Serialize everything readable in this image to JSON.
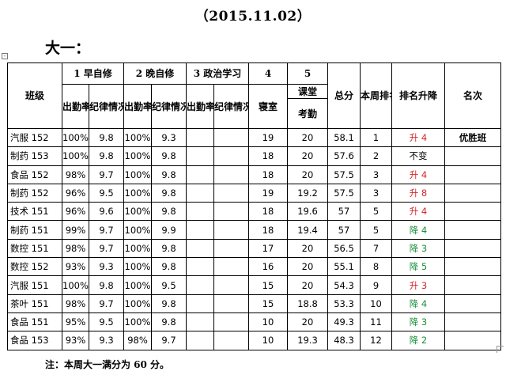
{
  "date": "（2015.11.02）",
  "grade": "大一：",
  "header": {
    "class": "班级",
    "morning": "1 早自修",
    "evening": "2 晚自修",
    "politics": "3 政治学习",
    "dorm_no": "4",
    "dorm": "寝室",
    "class_no": "5",
    "class_sub": "课堂",
    "attend_check": "考勤",
    "total": "总分",
    "week_rank": "本周排名",
    "rank_change": "排名升降",
    "place": "名次",
    "attend_rate": "出勤率",
    "discipline": "纪律情况"
  },
  "rows": [
    {
      "cls": "汽服 152",
      "m_rate": "100%",
      "m_disc": "9.8",
      "e_rate": "100%",
      "e_disc": "9.3",
      "p_rate": "",
      "p_disc": "",
      "dorm": "19",
      "attend": "20",
      "total": "58.1",
      "rank": "1",
      "change": "升 4",
      "dir": "up",
      "place": "优胜班"
    },
    {
      "cls": "制药 153",
      "m_rate": "100%",
      "m_disc": "9.8",
      "e_rate": "100%",
      "e_disc": "9.8",
      "p_rate": "",
      "p_disc": "",
      "dorm": "18",
      "attend": "20",
      "total": "57.6",
      "rank": "2",
      "change": "不变",
      "dir": "same",
      "place": ""
    },
    {
      "cls": "食品 152",
      "m_rate": "98%",
      "m_disc": "9.7",
      "e_rate": "100%",
      "e_disc": "9.8",
      "p_rate": "",
      "p_disc": "",
      "dorm": "18",
      "attend": "20",
      "total": "57.5",
      "rank": "3",
      "change": "升 4",
      "dir": "up",
      "place": ""
    },
    {
      "cls": "制药 152",
      "m_rate": "96%",
      "m_disc": "9.5",
      "e_rate": "100%",
      "e_disc": "9.8",
      "p_rate": "",
      "p_disc": "",
      "dorm": "19",
      "attend": "19.2",
      "total": "57.5",
      "rank": "3",
      "change": "升 8",
      "dir": "up",
      "place": ""
    },
    {
      "cls": "技术 151",
      "m_rate": "96%",
      "m_disc": "9.6",
      "e_rate": "100%",
      "e_disc": "9.8",
      "p_rate": "",
      "p_disc": "",
      "dorm": "18",
      "attend": "19.6",
      "total": "57",
      "rank": "5",
      "change": "升 4",
      "dir": "up",
      "place": ""
    },
    {
      "cls": "制药 151",
      "m_rate": "99%",
      "m_disc": "9.7",
      "e_rate": "100%",
      "e_disc": "9.9",
      "p_rate": "",
      "p_disc": "",
      "dorm": "18",
      "attend": "19.4",
      "total": "57",
      "rank": "5",
      "change": "降 4",
      "dir": "down",
      "place": ""
    },
    {
      "cls": "数控 151",
      "m_rate": "98%",
      "m_disc": "9.7",
      "e_rate": "100%",
      "e_disc": "9.8",
      "p_rate": "",
      "p_disc": "",
      "dorm": "17",
      "attend": "20",
      "total": "56.5",
      "rank": "7",
      "change": "降 3",
      "dir": "down",
      "place": ""
    },
    {
      "cls": "数控 152",
      "m_rate": "93%",
      "m_disc": "9.3",
      "e_rate": "100%",
      "e_disc": "9.8",
      "p_rate": "",
      "p_disc": "",
      "dorm": "16",
      "attend": "20",
      "total": "55.1",
      "rank": "8",
      "change": "降 5",
      "dir": "down",
      "place": ""
    },
    {
      "cls": "汽服 151",
      "m_rate": "100%",
      "m_disc": "9.8",
      "e_rate": "100%",
      "e_disc": "9.5",
      "p_rate": "",
      "p_disc": "",
      "dorm": "15",
      "attend": "20",
      "total": "54.3",
      "rank": "9",
      "change": "升 3",
      "dir": "up",
      "place": ""
    },
    {
      "cls": "茶叶 151",
      "m_rate": "98%",
      "m_disc": "9.7",
      "e_rate": "100%",
      "e_disc": "9.8",
      "p_rate": "",
      "p_disc": "",
      "dorm": "15",
      "attend": "18.8",
      "total": "53.3",
      "rank": "10",
      "change": "降 4",
      "dir": "down",
      "place": ""
    },
    {
      "cls": "食品 151",
      "m_rate": "95%",
      "m_disc": "9.5",
      "e_rate": "100%",
      "e_disc": "9.8",
      "p_rate": "",
      "p_disc": "",
      "dorm": "10",
      "attend": "20",
      "total": "49.3",
      "rank": "11",
      "change": "降 3",
      "dir": "down",
      "place": ""
    },
    {
      "cls": "食品 153",
      "m_rate": "93%",
      "m_disc": "9.3",
      "e_rate": "98%",
      "e_disc": "9.7",
      "p_rate": "",
      "p_disc": "",
      "dorm": "10",
      "attend": "19.3",
      "total": "48.3",
      "rank": "12",
      "change": "降 2",
      "dir": "down",
      "place": ""
    }
  ],
  "colors": {
    "up": "#d62828",
    "down": "#1f8f3a",
    "same": "#000000"
  },
  "note": "注：本周大一满分为 60 分。"
}
